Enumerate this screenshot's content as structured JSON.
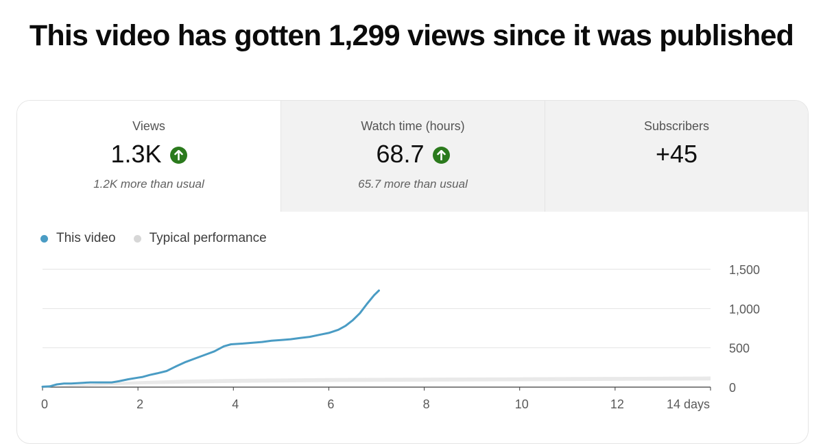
{
  "headline": "This video has gotten 1,299 views since it was published",
  "tabs": [
    {
      "label": "Views",
      "value": "1.3K",
      "trend_icon": "arrow-up-circle-icon",
      "sub": "1.2K more than usual"
    },
    {
      "label": "Watch time (hours)",
      "value": "68.7",
      "trend_icon": "arrow-up-circle-icon",
      "sub": "65.7 more than usual"
    },
    {
      "label": "Subscribers",
      "value": "+45",
      "sub": ""
    }
  ],
  "colors": {
    "this_video": "#4a9cc4",
    "typical": "#d7d7d7",
    "trend_up": "#2b7a1d"
  },
  "chart_data": {
    "type": "line",
    "legend": {
      "placement": "top-left",
      "entries": [
        "This video",
        "Typical performance"
      ]
    },
    "x_tick_labels": [
      "0",
      "2",
      "4",
      "6",
      "8",
      "10",
      "12",
      "14 days"
    ],
    "x_ticks": [
      0,
      2,
      4,
      6,
      8,
      10,
      12,
      14
    ],
    "y_tick_labels": [
      "0",
      "500",
      "1,000",
      "1,500"
    ],
    "y_ticks": [
      0,
      500,
      1000,
      1500
    ],
    "xlim": [
      0,
      14
    ],
    "ylim": [
      0,
      1500
    ],
    "y_axis_side": "right",
    "grid": true,
    "series": [
      {
        "name": "This video",
        "x": [
          0,
          0.15,
          0.3,
          0.45,
          0.6,
          0.85,
          1.0,
          1.2,
          1.45,
          1.6,
          1.8,
          2.0,
          2.1,
          2.25,
          2.4,
          2.6,
          2.8,
          3.0,
          3.2,
          3.4,
          3.6,
          3.8,
          3.95,
          4.2,
          4.4,
          4.6,
          4.8,
          5.0,
          5.2,
          5.4,
          5.6,
          5.8,
          6.0,
          6.2,
          6.35,
          6.5,
          6.65,
          6.8,
          6.95,
          7.05
        ],
        "y": [
          5,
          10,
          35,
          45,
          45,
          55,
          60,
          60,
          60,
          75,
          100,
          120,
          130,
          155,
          175,
          205,
          265,
          320,
          365,
          410,
          455,
          520,
          545,
          555,
          565,
          575,
          590,
          600,
          610,
          625,
          640,
          665,
          690,
          730,
          780,
          850,
          940,
          1060,
          1170,
          1230
        ]
      },
      {
        "name": "Typical performance",
        "band": true,
        "x": [
          0,
          1,
          2,
          3,
          4,
          6,
          8,
          10,
          12,
          14
        ],
        "y_low": [
          0,
          15,
          35,
          45,
          55,
          65,
          70,
          75,
          80,
          85
        ],
        "y_high": [
          0,
          40,
          75,
          95,
          105,
          115,
          120,
          125,
          130,
          135
        ]
      }
    ]
  }
}
